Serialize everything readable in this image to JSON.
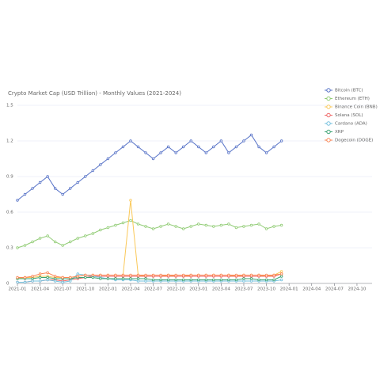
{
  "chart_data": {
    "type": "line",
    "title": "Crypto Market Cap (USD Trillion) - Monthly Values (2021-2024)",
    "x": [
      "2021-01",
      "2021-02",
      "2021-03",
      "2021-04",
      "2021-05",
      "2021-06",
      "2021-07",
      "2021-08",
      "2021-09",
      "2021-10",
      "2021-11",
      "2021-12",
      "2022-01",
      "2022-02",
      "2022-03",
      "2022-04",
      "2022-05",
      "2022-06",
      "2022-07",
      "2022-08",
      "2022-09",
      "2022-10",
      "2022-11",
      "2022-12",
      "2023-01",
      "2023-02",
      "2023-03",
      "2023-04",
      "2023-05",
      "2023-06",
      "2023-07",
      "2023-08",
      "2023-09",
      "2023-10",
      "2023-11",
      "2023-12"
    ],
    "xlim": [
      "2021-01",
      "2024-12"
    ],
    "xticks": [
      "2021-01",
      "2021-04",
      "2021-07",
      "2021-10",
      "2022-01",
      "2022-04",
      "2022-07",
      "2022-10",
      "2023-01",
      "2023-04",
      "2023-07",
      "2023-10",
      "2024-01",
      "2024-04",
      "2024-07",
      "2024-10"
    ],
    "ylim": [
      0,
      1.5
    ],
    "yticks": [
      0,
      0.3,
      0.6,
      0.9,
      1.2,
      1.5
    ],
    "grid": true,
    "legend": "top-right",
    "series": [
      {
        "name": "Bitcoin (BTC)",
        "color": "#5470c6",
        "values": [
          0.7,
          0.75,
          0.8,
          0.85,
          0.9,
          0.8,
          0.75,
          0.8,
          0.85,
          0.9,
          0.95,
          1.0,
          1.05,
          1.1,
          1.15,
          1.2,
          1.15,
          1.1,
          1.05,
          1.1,
          1.15,
          1.1,
          1.15,
          1.2,
          1.15,
          1.1,
          1.15,
          1.2,
          1.1,
          1.15,
          1.2,
          1.25,
          1.15,
          1.1,
          1.15,
          1.2
        ]
      },
      {
        "name": "Ethereum (ETH)",
        "color": "#91cc75",
        "values": [
          0.3,
          0.32,
          0.35,
          0.38,
          0.4,
          0.35,
          0.32,
          0.35,
          0.38,
          0.4,
          0.42,
          0.45,
          0.47,
          0.49,
          0.51,
          0.53,
          0.5,
          0.48,
          0.46,
          0.48,
          0.5,
          0.48,
          0.46,
          0.48,
          0.5,
          0.49,
          0.48,
          0.49,
          0.5,
          0.47,
          0.48,
          0.49,
          0.5,
          0.46,
          0.48,
          0.49
        ]
      },
      {
        "name": "Binance Coin (BNB)",
        "color": "#fac858",
        "values": [
          0.04,
          0.05,
          0.05,
          0.06,
          0.06,
          0.05,
          0.05,
          0.05,
          0.06,
          0.07,
          0.07,
          0.07,
          0.07,
          0.07,
          0.07,
          0.7,
          0.07,
          0.06,
          0.06,
          0.06,
          0.07,
          0.06,
          0.06,
          0.07,
          0.07,
          0.07,
          0.07,
          0.07,
          0.07,
          0.06,
          0.07,
          0.07,
          0.07,
          0.06,
          0.07,
          0.1
        ]
      },
      {
        "name": "Solana (SOL)",
        "color": "#ee6666",
        "values": [
          0.01,
          0.01,
          0.02,
          0.02,
          0.03,
          0.03,
          0.02,
          0.03,
          0.04,
          0.05,
          0.06,
          0.06,
          0.06,
          0.06,
          0.06,
          0.06,
          0.06,
          0.06,
          0.06,
          0.06,
          0.06,
          0.06,
          0.06,
          0.06,
          0.06,
          0.06,
          0.06,
          0.06,
          0.06,
          0.06,
          0.06,
          0.06,
          0.06,
          0.06,
          0.06,
          0.08
        ]
      },
      {
        "name": "Cardano (ADA)",
        "color": "#73c0de",
        "values": [
          0.01,
          0.01,
          0.02,
          0.02,
          0.03,
          0.02,
          0.01,
          0.02,
          0.08,
          0.07,
          0.06,
          0.05,
          0.04,
          0.03,
          0.03,
          0.03,
          0.02,
          0.02,
          0.02,
          0.02,
          0.02,
          0.02,
          0.02,
          0.02,
          0.02,
          0.02,
          0.02,
          0.02,
          0.02,
          0.02,
          0.02,
          0.02,
          0.02,
          0.02,
          0.02,
          0.03
        ]
      },
      {
        "name": "XRP",
        "color": "#3ba272",
        "values": [
          0.04,
          0.04,
          0.04,
          0.05,
          0.05,
          0.04,
          0.04,
          0.04,
          0.05,
          0.05,
          0.05,
          0.04,
          0.04,
          0.04,
          0.04,
          0.04,
          0.04,
          0.04,
          0.03,
          0.03,
          0.03,
          0.03,
          0.03,
          0.03,
          0.03,
          0.03,
          0.03,
          0.03,
          0.03,
          0.03,
          0.04,
          0.04,
          0.03,
          0.03,
          0.03,
          0.06
        ]
      },
      {
        "name": "Dogecoin (DOGE)",
        "color": "#fc8452",
        "values": [
          0.05,
          0.05,
          0.06,
          0.08,
          0.09,
          0.06,
          0.05,
          0.05,
          0.06,
          0.07,
          0.07,
          0.07,
          0.07,
          0.07,
          0.07,
          0.07,
          0.07,
          0.07,
          0.07,
          0.07,
          0.07,
          0.07,
          0.07,
          0.07,
          0.07,
          0.07,
          0.07,
          0.07,
          0.07,
          0.07,
          0.07,
          0.07,
          0.07,
          0.07,
          0.07,
          0.08
        ]
      }
    ]
  }
}
